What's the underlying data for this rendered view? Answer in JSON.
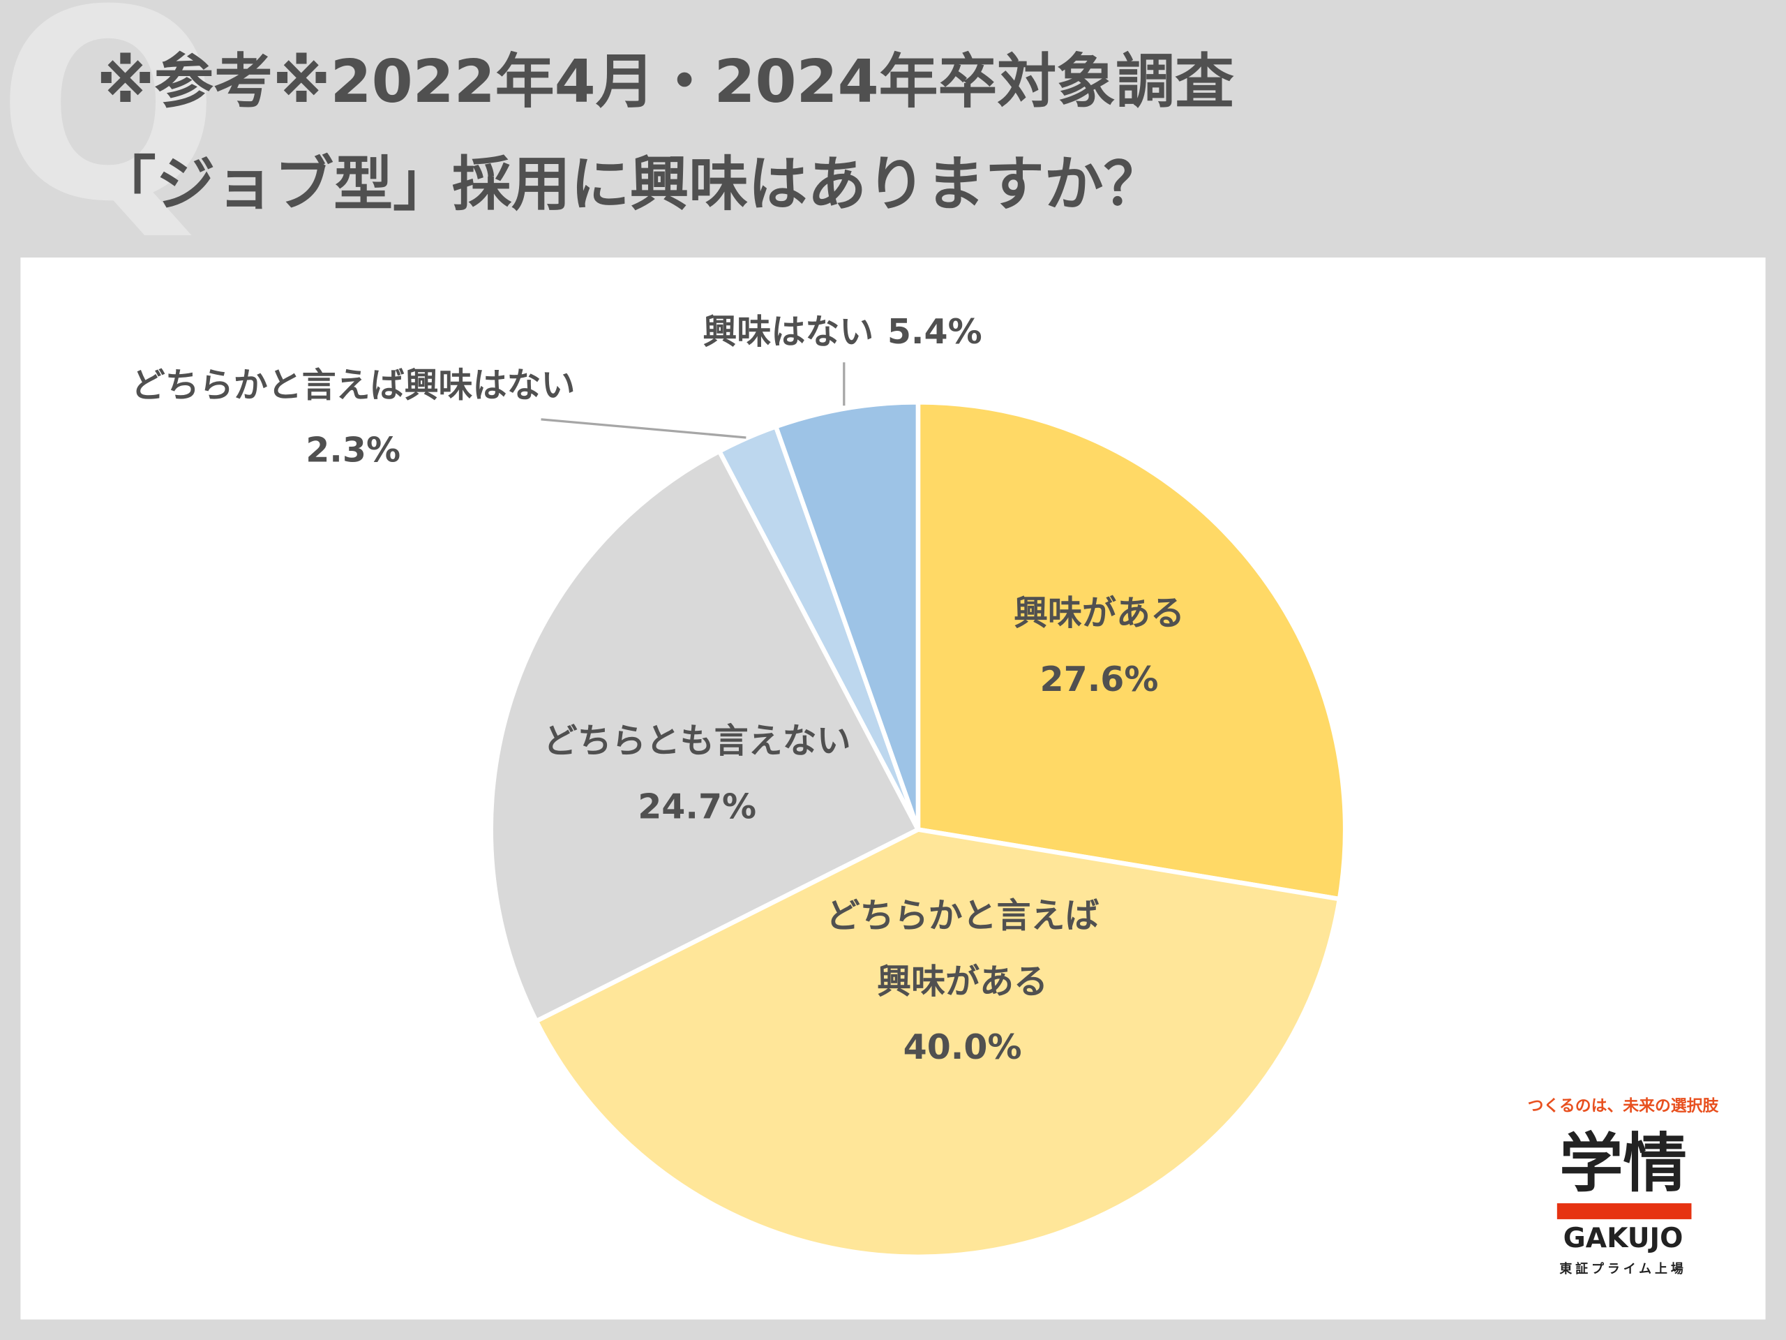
{
  "chart_data": {
    "type": "pie",
    "title": "※参考※2022年4月・2024年卒対象調査",
    "subtitle": "「ジョブ型」採用に興味はありますか？",
    "categories": [
      "興味がある",
      "どちらかと言えば興味がある",
      "どちらとも言えない",
      "どちらかと言えば興味はない",
      "興味はない"
    ],
    "values": [
      27.6,
      40.0,
      24.7,
      2.3,
      5.4
    ],
    "value_labels": [
      "27.6%",
      "40.0%",
      "24.7%",
      "2.3%",
      "5.4%"
    ],
    "colors": [
      "#FFD966",
      "#FFE699",
      "#D9D9D9",
      "#BDD7EE",
      "#9DC3E6"
    ]
  },
  "watermark": "Q",
  "logo": {
    "tagline": "つくるのは、未来の選択肢",
    "name": "学情",
    "latin": "GAKUJO",
    "note": "東証プライム上場"
  }
}
